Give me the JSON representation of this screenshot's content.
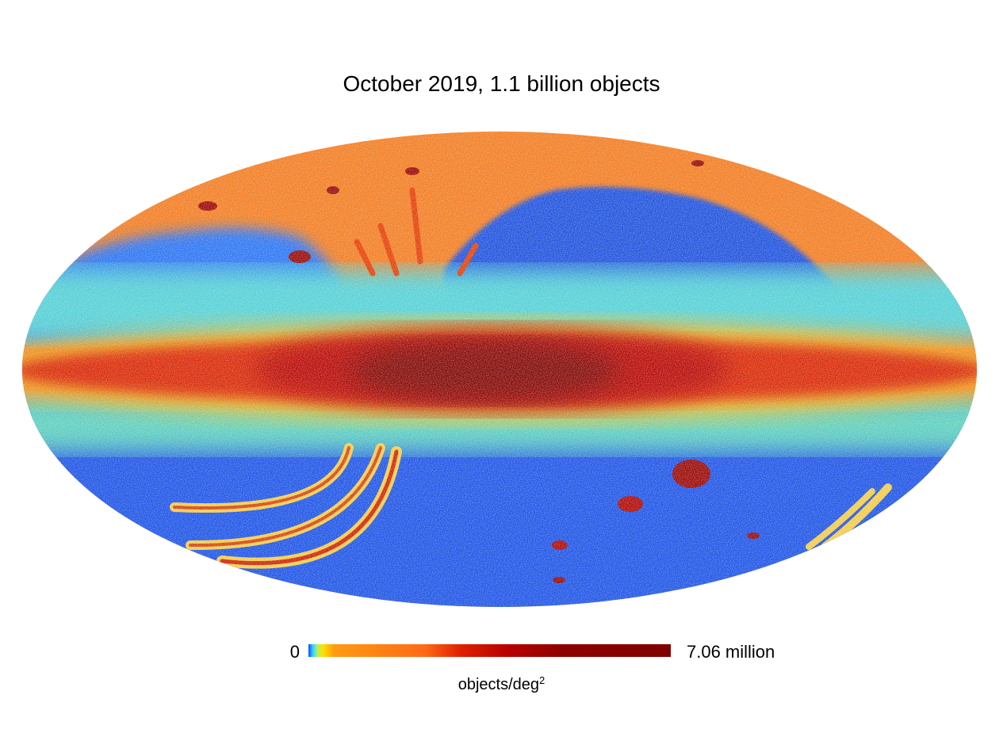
{
  "title": "October 2019, 1.1 billion objects",
  "projection": "mollweide",
  "map_type": "density-heatmap",
  "colorbar": {
    "min_label": "0",
    "max_label": "7.06 million",
    "unit_text": "objects/deg",
    "unit_exponent": "2",
    "colors": [
      "#0a2fd8",
      "#1a6cff",
      "#2fd0ff",
      "#aaf070",
      "#ffe100",
      "#ff9b12",
      "#e82800",
      "#b80000",
      "#800000"
    ]
  },
  "colors": {
    "low_density": "#1a4bef",
    "mid_density": "#9fe36a",
    "high_density": "#ff7a1a",
    "galactic_plane": "#b50000",
    "core": "#800000"
  }
}
